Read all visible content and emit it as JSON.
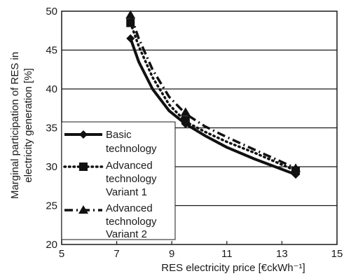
{
  "chart_data": {
    "type": "line",
    "xlabel": "RES electricity price [€ckWh⁻¹]",
    "ylabel_lines": [
      "Marginal participation of RES in",
      "electricity generation [%]"
    ],
    "xlim": [
      5,
      15
    ],
    "ylim": [
      20,
      50
    ],
    "xticks": [
      5,
      7,
      9,
      11,
      13,
      15
    ],
    "yticks": [
      20,
      25,
      30,
      35,
      40,
      45,
      50
    ],
    "grid": "horizontal",
    "legend_position": "bottom-left",
    "series": [
      {
        "name_lines": [
          "Basic",
          "technology"
        ],
        "marker": "diamond",
        "line_style": "solid",
        "points": [
          [
            7.5,
            46.5
          ],
          [
            7.8,
            43.5
          ],
          [
            8.3,
            40.0
          ],
          [
            8.9,
            37.2
          ],
          [
            9.5,
            35.5
          ],
          [
            10.2,
            34.0
          ],
          [
            11.0,
            32.5
          ],
          [
            12.0,
            31.0
          ],
          [
            13.5,
            29.0
          ]
        ],
        "marker_points": [
          [
            7.5,
            46.5
          ],
          [
            9.5,
            35.5
          ],
          [
            13.5,
            29.0
          ]
        ]
      },
      {
        "name_lines": [
          "Advanced",
          "technology",
          "Variant 1"
        ],
        "marker": "square",
        "line_style": "dotted",
        "points": [
          [
            7.5,
            48.5
          ],
          [
            7.8,
            45.5
          ],
          [
            8.3,
            41.5
          ],
          [
            8.9,
            38.0
          ],
          [
            9.5,
            35.8
          ],
          [
            10.2,
            34.5
          ],
          [
            11.0,
            33.2
          ],
          [
            12.0,
            31.8
          ],
          [
            13.5,
            29.5
          ]
        ],
        "marker_points": [
          [
            7.5,
            48.5
          ],
          [
            9.5,
            36.0
          ],
          [
            13.5,
            29.5
          ]
        ]
      },
      {
        "name_lines": [
          "Advanced",
          "technology",
          "Variant 2"
        ],
        "marker": "triangle",
        "line_style": "dashdot",
        "points": [
          [
            7.5,
            49.5
          ],
          [
            7.8,
            46.5
          ],
          [
            8.3,
            42.5
          ],
          [
            8.9,
            39.0
          ],
          [
            9.5,
            36.8
          ],
          [
            10.2,
            35.2
          ],
          [
            11.0,
            33.8
          ],
          [
            12.0,
            32.2
          ],
          [
            13.5,
            29.8
          ]
        ],
        "marker_points": [
          [
            7.5,
            49.5
          ],
          [
            9.5,
            37.0
          ],
          [
            13.5,
            29.8
          ]
        ]
      }
    ]
  }
}
